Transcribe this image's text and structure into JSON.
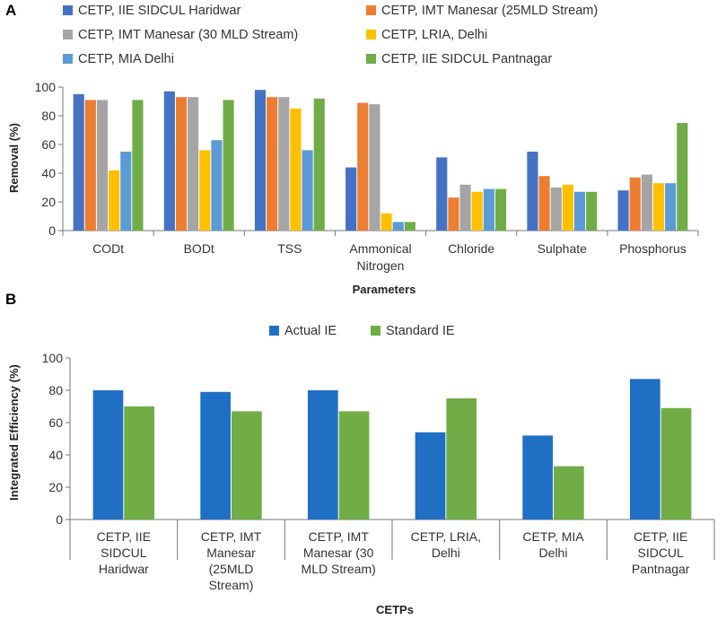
{
  "panel_labels": {
    "a": "A",
    "b": "B"
  },
  "chart_data": [
    {
      "type": "bar",
      "panel": "A",
      "title": "",
      "xlabel": "Parameters",
      "ylabel": "Removal (%)",
      "ylim": [
        0,
        100
      ],
      "yticks": [
        0,
        20,
        40,
        60,
        80,
        100
      ],
      "grid": false,
      "legend": "top",
      "categories": [
        "CODt",
        "BODt",
        "TSS",
        "Ammonical Nitrogen",
        "Chloride",
        "Sulphate",
        "Phosphorus"
      ],
      "category_lines": [
        [
          "CODt"
        ],
        [
          "BODt"
        ],
        [
          "TSS"
        ],
        [
          "Ammonical",
          "Nitrogen"
        ],
        [
          "Chloride"
        ],
        [
          "Sulphate"
        ],
        [
          "Phosphorus"
        ]
      ],
      "series": [
        {
          "name": "CETP, IIE SIDCUL Haridwar",
          "color": "#4472C4",
          "values": [
            95,
            97,
            98,
            44,
            51,
            55,
            28
          ]
        },
        {
          "name": "CETP, IMT Manesar (25MLD Stream)",
          "color": "#ED7D31",
          "values": [
            91,
            93,
            93,
            89,
            23,
            38,
            37
          ]
        },
        {
          "name": "CETP, IMT Manesar (30 MLD Stream)",
          "color": "#A5A5A5",
          "values": [
            91,
            93,
            93,
            88,
            32,
            30,
            39
          ]
        },
        {
          "name": "CETP, LRIA, Delhi",
          "color": "#FFC000",
          "values": [
            42,
            56,
            85,
            12,
            27,
            32,
            33
          ]
        },
        {
          "name": "CETP, MIA Delhi",
          "color": "#5B9BD5",
          "values": [
            55,
            63,
            56,
            6,
            29,
            27,
            33
          ]
        },
        {
          "name": "CETP, IIE SIDCUL Pantnagar",
          "color": "#70AD47",
          "values": [
            91,
            91,
            92,
            6,
            29,
            27,
            75
          ]
        }
      ]
    },
    {
      "type": "bar",
      "panel": "B",
      "title": "",
      "xlabel": "CETPs",
      "ylabel": "Integrated Efficiency (%)",
      "ylim": [
        0,
        100
      ],
      "yticks": [
        0,
        20,
        40,
        60,
        80,
        100
      ],
      "grid": false,
      "legend": "top",
      "categories": [
        "CETP, IIE SIDCUL Haridwar",
        "CETP, IMT Manesar (25MLD Stream)",
        "CETP, IMT Manesar (30 MLD Stream)",
        "CETP, LRIA, Delhi",
        "CETP, MIA Delhi",
        "CETP, IIE SIDCUL Pantnagar"
      ],
      "category_lines": [
        [
          "CETP, IIE",
          "SIDCUL",
          "Haridwar"
        ],
        [
          "CETP, IMT",
          "Manesar",
          "(25MLD",
          "Stream)"
        ],
        [
          "CETP, IMT",
          "Manesar (30",
          "MLD Stream)"
        ],
        [
          "CETP, LRIA,",
          "Delhi"
        ],
        [
          "CETP, MIA",
          "Delhi"
        ],
        [
          "CETP, IIE",
          "SIDCUL",
          "Pantnagar"
        ]
      ],
      "series": [
        {
          "name": "Actual IE",
          "color": "#1F6FC5",
          "values": [
            80,
            79,
            80,
            54,
            52,
            87
          ]
        },
        {
          "name": "Standard IE",
          "color": "#70AD47",
          "values": [
            70,
            67,
            67,
            75,
            33,
            69
          ]
        }
      ]
    }
  ]
}
